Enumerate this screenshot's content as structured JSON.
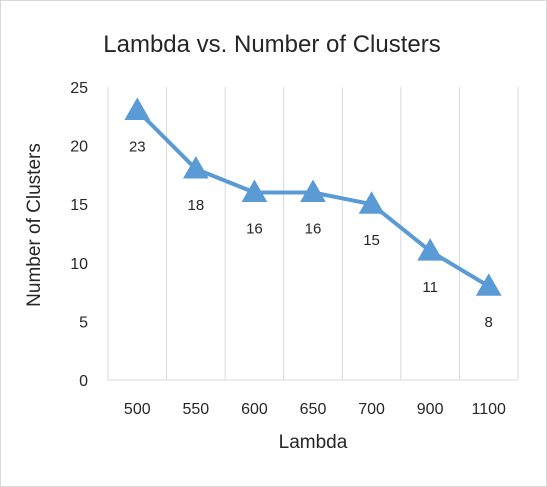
{
  "chart_data": {
    "type": "line",
    "title": "Lambda vs. Number of Clusters",
    "xlabel": "Lambda",
    "ylabel": "Number of Clusters",
    "categories": [
      "500",
      "550",
      "600",
      "650",
      "700",
      "900",
      "1100"
    ],
    "series": [
      {
        "values": [
          23,
          18,
          16,
          16,
          15,
          11,
          8
        ]
      }
    ],
    "data_labels": [
      "23",
      "18",
      "16",
      "16",
      "15",
      "11",
      "8"
    ],
    "ylim": [
      0,
      25
    ],
    "yticks": [
      "0",
      "5",
      "10",
      "15",
      "20",
      "25"
    ],
    "grid": "vertical",
    "legend": "none",
    "marker": "triangle",
    "colors": {
      "series": "#5b9bd5",
      "grid": "#d9d9d9",
      "text": "#262626"
    }
  }
}
